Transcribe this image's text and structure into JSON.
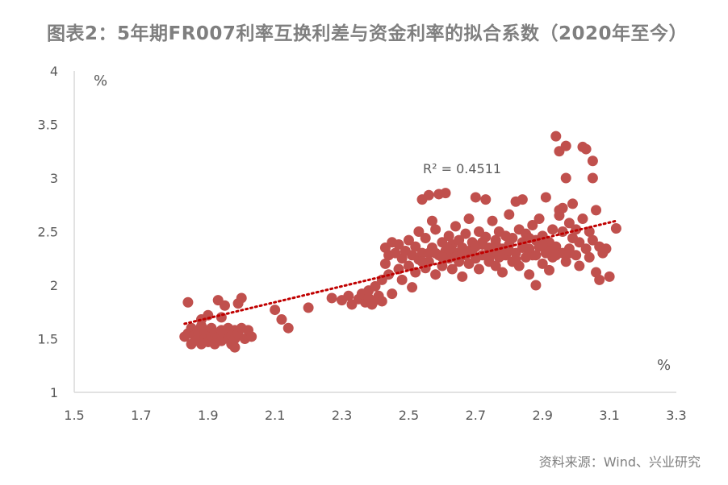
{
  "title": "图表2：5年期FR007利率互换利差与资金利率的拟合系数（2020年至今）",
  "source": "资料来源：Wind、兴业研究",
  "chart_data": {
    "type": "scatter",
    "title": "图表2：5年期FR007利率互换利差与资金利率的拟合系数（2020年至今）",
    "x_unit": "%",
    "y_unit": "%",
    "xlim": [
      1.5,
      3.3
    ],
    "ylim": [
      1,
      4
    ],
    "x_ticks": [
      "1.5",
      "1.7",
      "1.9",
      "2.1",
      "2.3",
      "2.5",
      "2.7",
      "2.9",
      "3.1",
      "3.3"
    ],
    "y_ticks": [
      "1",
      "1.5",
      "2",
      "2.5",
      "3",
      "3.5",
      "4"
    ],
    "trendline": {
      "type": "linear",
      "style": "dotted",
      "x": [
        1.83,
        3.12
      ],
      "y": [
        1.64,
        2.6
      ]
    },
    "annotation": "R² = 0.4511",
    "colors": {
      "points": "#c0504d",
      "trendline": "#c00000",
      "axis": "#d9d9d9"
    },
    "points": [
      [
        1.84,
        1.84
      ],
      [
        1.83,
        1.52
      ],
      [
        1.84,
        1.55
      ],
      [
        1.85,
        1.6
      ],
      [
        1.86,
        1.53
      ],
      [
        1.86,
        1.48
      ],
      [
        1.87,
        1.58
      ],
      [
        1.87,
        1.5
      ],
      [
        1.88,
        1.45
      ],
      [
        1.88,
        1.62
      ],
      [
        1.89,
        1.55
      ],
      [
        1.89,
        1.5
      ],
      [
        1.9,
        1.58
      ],
      [
        1.9,
        1.47
      ],
      [
        1.91,
        1.53
      ],
      [
        1.91,
        1.6
      ],
      [
        1.92,
        1.55
      ],
      [
        1.92,
        1.45
      ],
      [
        1.93,
        1.86
      ],
      [
        1.93,
        1.52
      ],
      [
        1.94,
        1.58
      ],
      [
        1.94,
        1.48
      ],
      [
        1.95,
        1.55
      ],
      [
        1.95,
        1.81
      ],
      [
        1.96,
        1.5
      ],
      [
        1.96,
        1.6
      ],
      [
        1.97,
        1.53
      ],
      [
        1.97,
        1.45
      ],
      [
        1.98,
        1.58
      ],
      [
        1.98,
        1.5
      ],
      [
        1.99,
        1.55
      ],
      [
        1.99,
        1.83
      ],
      [
        2.0,
        1.6
      ],
      [
        2.0,
        1.88
      ],
      [
        2.01,
        1.5
      ],
      [
        2.02,
        1.58
      ],
      [
        2.03,
        1.52
      ],
      [
        1.9,
        1.72
      ],
      [
        1.94,
        1.7
      ],
      [
        1.98,
        1.42
      ],
      [
        1.85,
        1.45
      ],
      [
        1.88,
        1.68
      ],
      [
        2.1,
        1.77
      ],
      [
        2.12,
        1.68
      ],
      [
        2.14,
        1.6
      ],
      [
        2.2,
        1.79
      ],
      [
        2.27,
        1.88
      ],
      [
        2.3,
        1.86
      ],
      [
        2.32,
        1.9
      ],
      [
        2.33,
        1.82
      ],
      [
        2.35,
        1.87
      ],
      [
        2.36,
        1.92
      ],
      [
        2.37,
        1.84
      ],
      [
        2.38,
        1.88
      ],
      [
        2.38,
        1.95
      ],
      [
        2.39,
        1.82
      ],
      [
        2.4,
        1.86
      ],
      [
        2.4,
        1.99
      ],
      [
        2.41,
        1.9
      ],
      [
        2.42,
        2.05
      ],
      [
        2.42,
        1.85
      ],
      [
        2.43,
        2.2
      ],
      [
        2.43,
        2.35
      ],
      [
        2.44,
        2.1
      ],
      [
        2.44,
        2.28
      ],
      [
        2.45,
        2.4
      ],
      [
        2.45,
        1.92
      ],
      [
        2.46,
        2.3
      ],
      [
        2.47,
        2.15
      ],
      [
        2.47,
        2.38
      ],
      [
        2.48,
        2.25
      ],
      [
        2.48,
        2.05
      ],
      [
        2.49,
        2.32
      ],
      [
        2.5,
        2.18
      ],
      [
        2.5,
        2.42
      ],
      [
        2.51,
        1.98
      ],
      [
        2.51,
        2.28
      ],
      [
        2.52,
        2.36
      ],
      [
        2.52,
        2.12
      ],
      [
        2.53,
        2.5
      ],
      [
        2.53,
        2.24
      ],
      [
        2.54,
        2.3
      ],
      [
        2.54,
        2.8
      ],
      [
        2.55,
        2.16
      ],
      [
        2.55,
        2.44
      ],
      [
        2.56,
        2.84
      ],
      [
        2.56,
        2.22
      ],
      [
        2.57,
        2.6
      ],
      [
        2.57,
        2.35
      ],
      [
        2.58,
        2.1
      ],
      [
        2.58,
        2.52
      ],
      [
        2.59,
        2.28
      ],
      [
        2.59,
        2.85
      ],
      [
        2.6,
        2.4
      ],
      [
        2.6,
        2.18
      ],
      [
        2.61,
        2.32
      ],
      [
        2.61,
        2.86
      ],
      [
        2.62,
        2.25
      ],
      [
        2.62,
        2.46
      ],
      [
        2.63,
        2.15
      ],
      [
        2.63,
        2.38
      ],
      [
        2.64,
        2.3
      ],
      [
        2.64,
        2.55
      ],
      [
        2.65,
        2.22
      ],
      [
        2.65,
        2.42
      ],
      [
        2.66,
        2.35
      ],
      [
        2.66,
        2.08
      ],
      [
        2.67,
        2.48
      ],
      [
        2.67,
        2.28
      ],
      [
        2.68,
        2.62
      ],
      [
        2.68,
        2.2
      ],
      [
        2.69,
        2.4
      ],
      [
        2.69,
        2.32
      ],
      [
        2.7,
        2.82
      ],
      [
        2.7,
        2.25
      ],
      [
        2.71,
        2.5
      ],
      [
        2.71,
        2.15
      ],
      [
        2.72,
        2.38
      ],
      [
        2.72,
        2.28
      ],
      [
        2.73,
        2.45
      ],
      [
        2.73,
        2.8
      ],
      [
        2.74,
        2.22
      ],
      [
        2.74,
        2.35
      ],
      [
        2.75,
        2.6
      ],
      [
        2.75,
        2.3
      ],
      [
        2.76,
        2.18
      ],
      [
        2.76,
        2.42
      ],
      [
        2.77,
        2.26
      ],
      [
        2.77,
        2.5
      ],
      [
        2.78,
        2.34
      ],
      [
        2.78,
        2.12
      ],
      [
        2.79,
        2.46
      ],
      [
        2.79,
        2.28
      ],
      [
        2.8,
        2.38
      ],
      [
        2.8,
        2.66
      ],
      [
        2.81,
        2.22
      ],
      [
        2.81,
        2.44
      ],
      [
        2.82,
        2.78
      ],
      [
        2.82,
        2.3
      ],
      [
        2.83,
        2.52
      ],
      [
        2.83,
        2.18
      ],
      [
        2.84,
        2.4
      ],
      [
        2.84,
        2.8
      ],
      [
        2.85,
        2.26
      ],
      [
        2.85,
        2.48
      ],
      [
        2.86,
        2.34
      ],
      [
        2.86,
        2.1
      ],
      [
        2.87,
        2.56
      ],
      [
        2.87,
        2.28
      ],
      [
        2.88,
        2.42
      ],
      [
        2.88,
        2.0
      ],
      [
        2.89,
        2.36
      ],
      [
        2.89,
        2.62
      ],
      [
        2.9,
        2.2
      ],
      [
        2.9,
        2.46
      ],
      [
        2.91,
        2.3
      ],
      [
        2.91,
        2.82
      ],
      [
        2.92,
        2.4
      ],
      [
        2.92,
        2.14
      ],
      [
        2.93,
        2.52
      ],
      [
        2.93,
        2.26
      ],
      [
        2.94,
        3.39
      ],
      [
        2.94,
        2.36
      ],
      [
        2.95,
        3.25
      ],
      [
        2.95,
        2.7
      ],
      [
        2.96,
        2.3
      ],
      [
        2.96,
        2.5
      ],
      [
        2.97,
        3.3
      ],
      [
        2.97,
        2.22
      ],
      [
        2.98,
        2.58
      ],
      [
        2.98,
        2.34
      ],
      [
        2.99,
        2.44
      ],
      [
        2.99,
        2.76
      ],
      [
        3.0,
        2.28
      ],
      [
        3.0,
        2.52
      ],
      [
        3.01,
        2.4
      ],
      [
        3.01,
        2.18
      ],
      [
        3.02,
        2.62
      ],
      [
        3.02,
        3.29
      ],
      [
        3.03,
        2.34
      ],
      [
        3.03,
        3.27
      ],
      [
        3.04,
        2.5
      ],
      [
        3.04,
        2.26
      ],
      [
        3.05,
        3.16
      ],
      [
        3.05,
        2.42
      ],
      [
        3.06,
        2.7
      ],
      [
        3.06,
        2.12
      ],
      [
        3.07,
        2.36
      ],
      [
        3.07,
        2.05
      ],
      [
        3.08,
        2.3
      ],
      [
        3.09,
        2.34
      ],
      [
        3.1,
        2.08
      ],
      [
        3.12,
        2.53
      ],
      [
        2.95,
        2.65
      ],
      [
        2.96,
        2.72
      ],
      [
        2.97,
        3.0
      ],
      [
        3.05,
        3.0
      ],
      [
        2.72,
        2.4
      ],
      [
        2.76,
        2.32
      ],
      [
        2.84,
        2.35
      ],
      [
        2.88,
        2.28
      ],
      [
        2.92,
        2.32
      ],
      [
        2.86,
        2.44
      ],
      [
        2.78,
        2.28
      ],
      [
        2.68,
        2.32
      ],
      [
        2.64,
        2.26
      ],
      [
        2.58,
        2.3
      ],
      [
        2.54,
        2.22
      ],
      [
        2.6,
        2.26
      ],
      [
        2.66,
        2.3
      ],
      [
        2.74,
        2.26
      ],
      [
        2.82,
        2.24
      ],
      [
        2.9,
        2.38
      ],
      [
        2.94,
        2.28
      ],
      [
        2.98,
        2.3
      ],
      [
        2.8,
        2.32
      ],
      [
        2.76,
        2.38
      ],
      [
        2.7,
        2.36
      ],
      [
        2.62,
        2.34
      ],
      [
        2.56,
        2.3
      ]
    ]
  }
}
